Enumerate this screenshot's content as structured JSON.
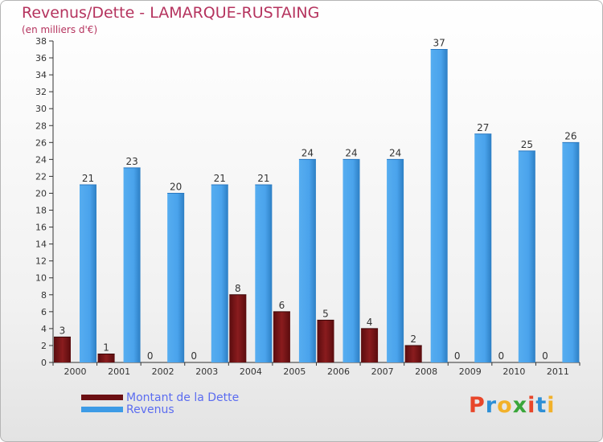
{
  "title": "Revenus/Dette - LAMARQUE-RUSTAING",
  "subtitle": "(en milliers d'€)",
  "legend": {
    "dette_label": "Montant de la Dette",
    "revenus_label": "Revenus"
  },
  "brand": {
    "text": "Proxiti",
    "colors": [
      "#e8462a",
      "#2e8fd6",
      "#f2b12a",
      "#3aa63a",
      "#e8462a",
      "#2e8fd6",
      "#f2b12a"
    ]
  },
  "colors": {
    "dette": "#7b1416",
    "revenus": "#3d9be6"
  },
  "chart_data": {
    "type": "bar",
    "title": "Revenus/Dette - LAMARQUE-RUSTAING",
    "ylabel": "(en milliers d'€)",
    "xlabel": "",
    "categories": [
      "2000",
      "2001",
      "2002",
      "2003",
      "2004",
      "2005",
      "2006",
      "2007",
      "2008",
      "2009",
      "2010",
      "2011"
    ],
    "series": [
      {
        "name": "Montant de la Dette",
        "values": [
          3,
          1,
          0,
          0,
          8,
          6,
          5,
          4,
          2,
          0,
          0,
          0
        ]
      },
      {
        "name": "Revenus",
        "values": [
          21,
          23,
          20,
          21,
          21,
          24,
          24,
          24,
          37,
          27,
          25,
          26
        ]
      }
    ],
    "ylim": [
      0,
      38
    ],
    "yticks": [
      0,
      2,
      4,
      6,
      8,
      10,
      12,
      14,
      16,
      18,
      20,
      22,
      24,
      26,
      28,
      30,
      32,
      34,
      36,
      38
    ],
    "grid": false,
    "legend_position": "bottom-left"
  }
}
